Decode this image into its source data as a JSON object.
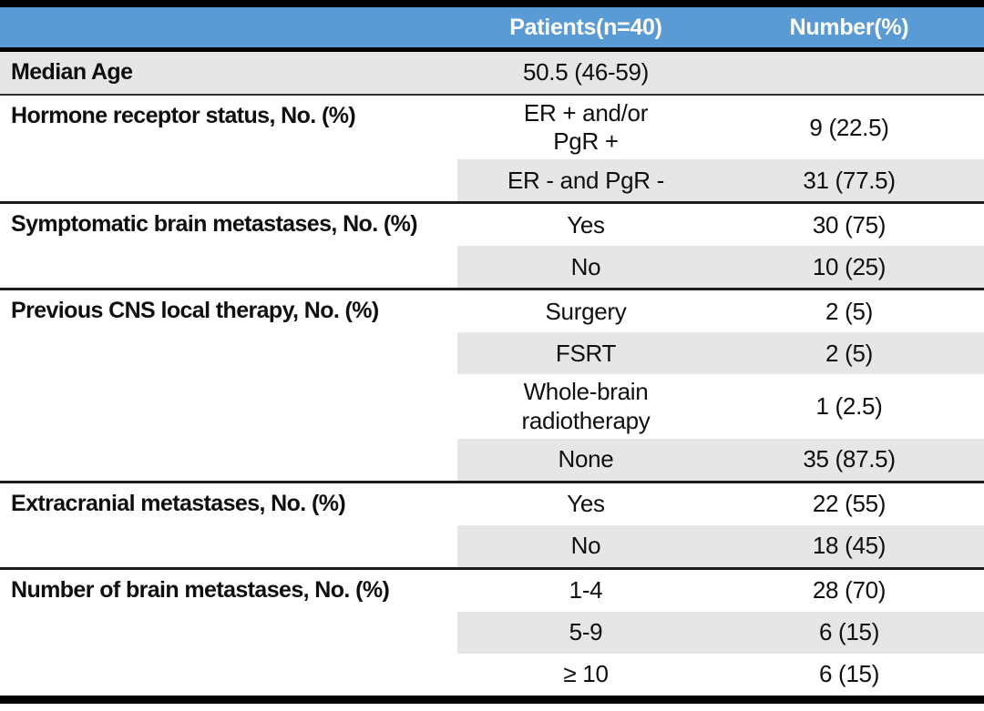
{
  "colors": {
    "header_bg": "#5B9BD5",
    "header_text": "#FFFFFF",
    "shade": "#E7E6E6",
    "border": "#000000"
  },
  "table": {
    "header": {
      "patients": "Patients(n=40)",
      "number": "Number(%)"
    },
    "sections": [
      {
        "label": "Median Age",
        "full_shade": true,
        "rows": [
          {
            "value": "50.5 (46-59)",
            "number": "",
            "shaded": false
          }
        ]
      },
      {
        "label": "Hormone receptor status, No. (%)",
        "full_shade": false,
        "rows": [
          {
            "value": "ER + and/or\nPgR +",
            "number": "9 (22.5)",
            "shaded": false
          },
          {
            "value": "ER - and PgR -",
            "number": "31 (77.5)",
            "shaded": true
          }
        ]
      },
      {
        "label": "Symptomatic brain metastases, No. (%)",
        "full_shade": false,
        "rows": [
          {
            "value": "Yes",
            "number": "30 (75)",
            "shaded": false
          },
          {
            "value": "No",
            "number": "10 (25)",
            "shaded": true
          }
        ]
      },
      {
        "label": "Previous CNS local therapy, No. (%)",
        "full_shade": false,
        "rows": [
          {
            "value": "Surgery",
            "number": "2 (5)",
            "shaded": false
          },
          {
            "value": "FSRT",
            "number": "2 (5)",
            "shaded": true
          },
          {
            "value": "Whole-brain\nradiotherapy",
            "number": "1 (2.5)",
            "shaded": false
          },
          {
            "value": "None",
            "number": "35 (87.5)",
            "shaded": true
          }
        ]
      },
      {
        "label": "Extracranial metastases, No. (%)",
        "full_shade": false,
        "rows": [
          {
            "value": "Yes",
            "number": "22 (55)",
            "shaded": false
          },
          {
            "value": "No",
            "number": "18 (45)",
            "shaded": true
          }
        ]
      },
      {
        "label": "Number of brain metastases, No. (%)",
        "full_shade": false,
        "rows": [
          {
            "value": "1-4",
            "number": "28 (70)",
            "shaded": false
          },
          {
            "value": "5-9",
            "number": "6 (15)",
            "shaded": true
          },
          {
            "value": "≥ 10",
            "number": "6 (15)",
            "shaded": false
          }
        ]
      }
    ]
  }
}
